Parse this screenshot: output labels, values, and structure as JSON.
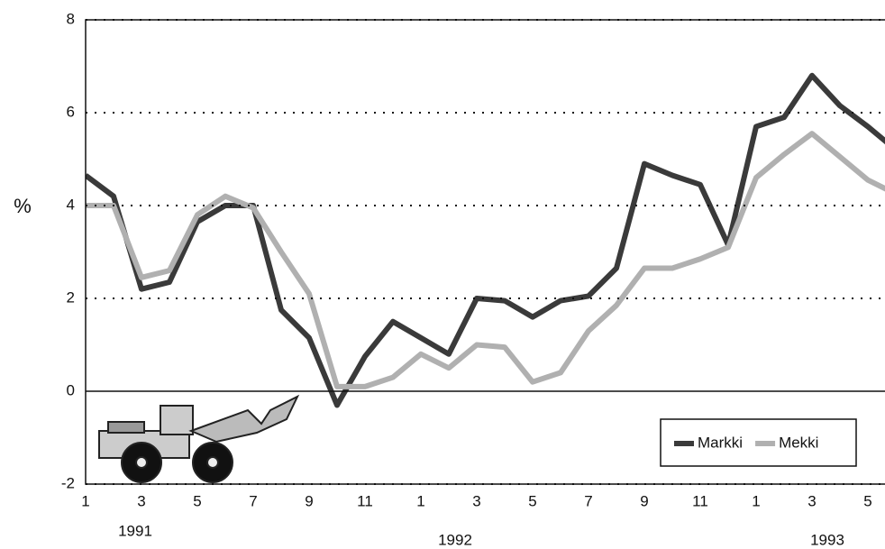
{
  "chart_data": {
    "type": "line",
    "y_label": "%",
    "categories": [
      "1",
      null,
      "3",
      null,
      "5",
      null,
      "7",
      null,
      "9",
      null,
      "11",
      null,
      "1",
      null,
      "3",
      null,
      "5",
      null,
      "7",
      null,
      "9",
      null,
      "11",
      null,
      "1",
      null,
      "3",
      null,
      "5",
      null
    ],
    "year_labels": [
      "1991",
      "1992",
      "1993"
    ],
    "series": [
      {
        "name": "Markki",
        "color": "#3a3a3a",
        "values": [
          4.65,
          4.2,
          2.2,
          2.35,
          3.65,
          4.0,
          4.0,
          1.75,
          1.15,
          -0.3,
          0.75,
          1.5,
          1.15,
          0.8,
          2.0,
          1.95,
          1.6,
          1.95,
          2.05,
          2.65,
          4.9,
          4.65,
          4.45,
          3.15,
          5.7,
          5.9,
          6.8,
          6.15,
          5.7,
          5.2
        ]
      },
      {
        "name": "Mekki",
        "color": "#b0b0b0",
        "values": [
          4.0,
          4.0,
          2.45,
          2.6,
          3.8,
          4.2,
          3.95,
          3.0,
          2.1,
          0.1,
          0.1,
          0.3,
          0.8,
          0.5,
          1.0,
          0.95,
          0.2,
          0.4,
          1.3,
          1.85,
          2.65,
          2.65,
          2.85,
          3.1,
          4.6,
          5.1,
          5.55,
          5.05,
          4.55,
          4.25
        ]
      }
    ],
    "ylim": [
      -2,
      8
    ],
    "yticks": [
      -2,
      0,
      2,
      4,
      6,
      8
    ],
    "grid": true,
    "legend": "lower right"
  }
}
